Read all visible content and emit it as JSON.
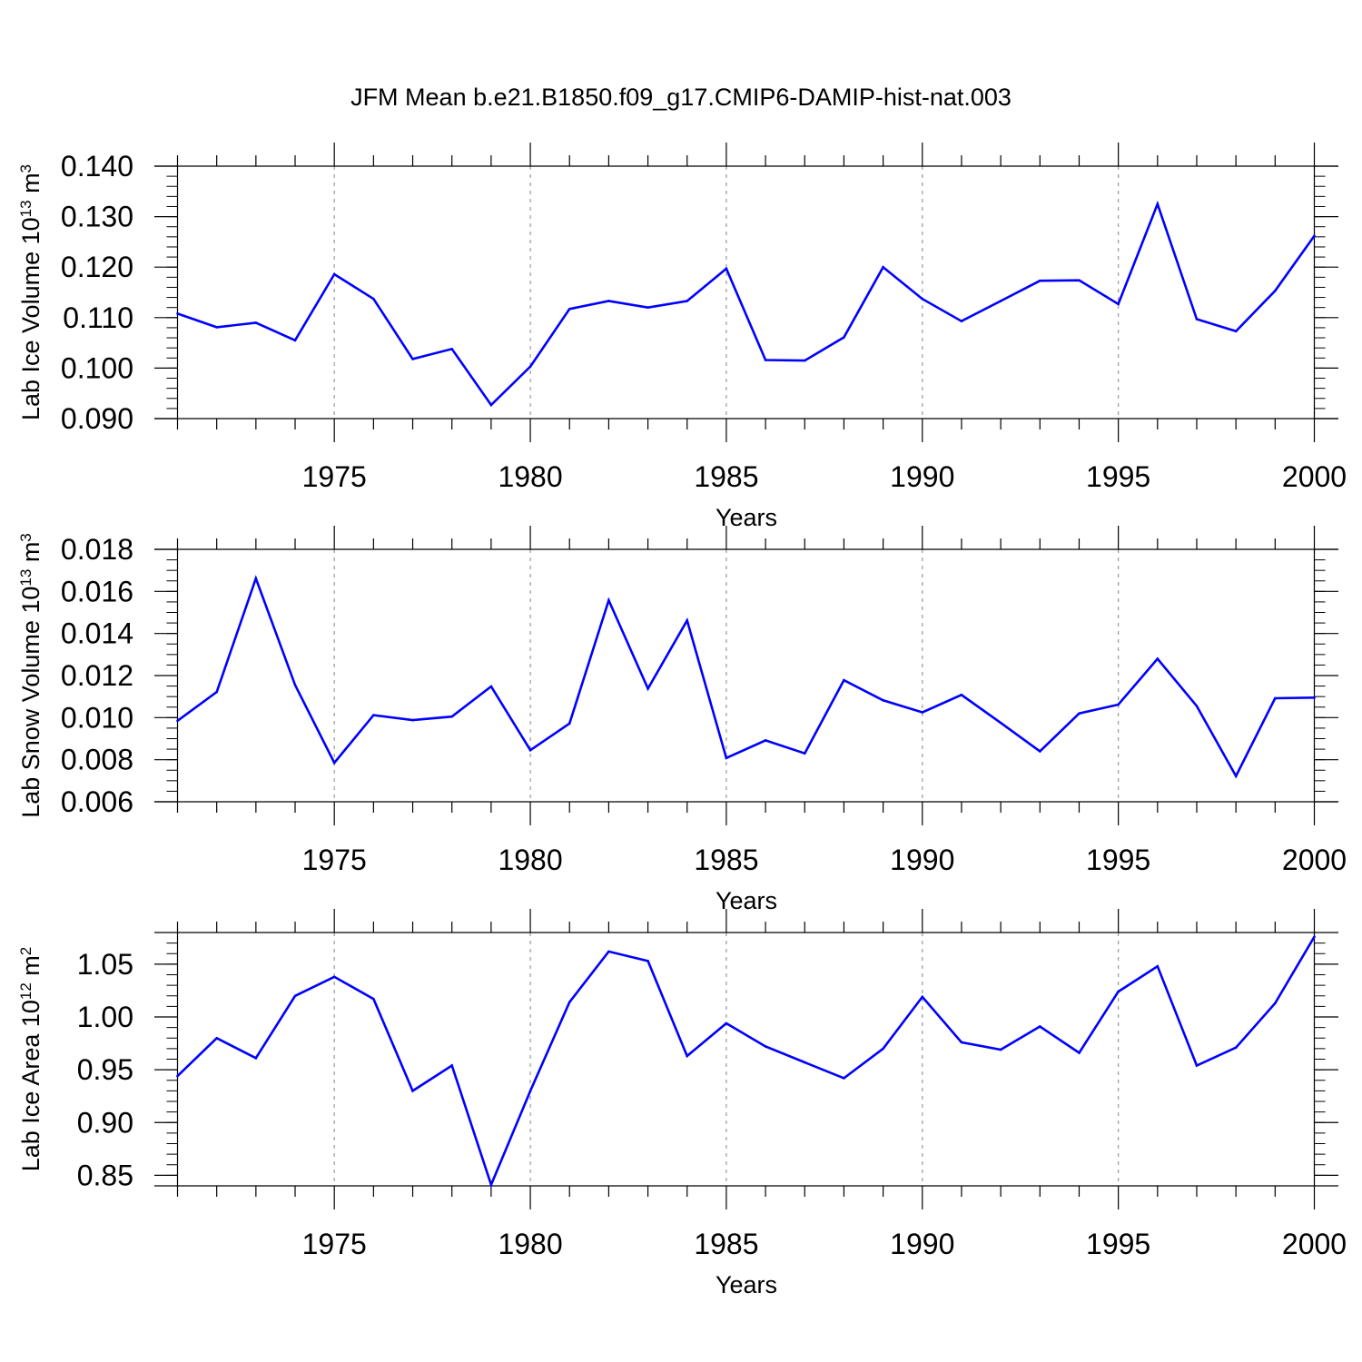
{
  "title": "JFM Mean b.e21.B1850.f09_g17.CMIP6-DAMIP-hist-nat.003",
  "chart_data": [
    {
      "type": "line",
      "title": "",
      "xlabel": "Years",
      "ylabel": "Lab Ice Volume 10",
      "ylabel_sup": "13",
      "ylabel_unit": " m",
      "ylabel_unit_sup": "3",
      "xlim": [
        1971,
        2000
      ],
      "ylim": [
        0.09,
        0.14
      ],
      "xticks": [
        1975,
        1980,
        1985,
        1990,
        1995,
        2000
      ],
      "yticks": [
        0.09,
        0.1,
        0.11,
        0.12,
        0.13,
        0.14
      ],
      "ytick_labels": [
        "0.090",
        "0.100",
        "0.110",
        "0.120",
        "0.130",
        "0.140"
      ],
      "y_minor_step": 0.002,
      "grid": "vertical dashed at major x ticks",
      "legend": "none",
      "color": "#0000ff",
      "x": [
        1971,
        1972,
        1973,
        1974,
        1975,
        1976,
        1977,
        1978,
        1979,
        1980,
        1981,
        1982,
        1983,
        1984,
        1985,
        1986,
        1987,
        1988,
        1989,
        1990,
        1991,
        1992,
        1993,
        1994,
        1995,
        1996,
        1997,
        1998,
        1999,
        2000
      ],
      "values": [
        0.1108,
        0.1081,
        0.109,
        0.1055,
        0.1186,
        0.1137,
        0.1018,
        0.1038,
        0.0927,
        0.1003,
        0.1117,
        0.1133,
        0.112,
        0.1133,
        0.1197,
        0.1016,
        0.1015,
        0.1061,
        0.12,
        0.1137,
        0.1093,
        0.1133,
        0.1173,
        0.1174,
        0.1127,
        0.1325,
        0.1097,
        0.1073,
        0.1153,
        0.1262
      ]
    },
    {
      "type": "line",
      "title": "",
      "xlabel": "Years",
      "ylabel": "Lab Snow Volume 10",
      "ylabel_sup": "13",
      "ylabel_unit": " m",
      "ylabel_unit_sup": "3",
      "xlim": [
        1971,
        2000
      ],
      "ylim": [
        0.006,
        0.018
      ],
      "xticks": [
        1975,
        1980,
        1985,
        1990,
        1995,
        2000
      ],
      "yticks": [
        0.006,
        0.008,
        0.01,
        0.012,
        0.014,
        0.016,
        0.018
      ],
      "ytick_labels": [
        "0.006",
        "0.008",
        "0.010",
        "0.012",
        "0.014",
        "0.016",
        "0.018"
      ],
      "y_minor_step": 0.0005,
      "grid": "vertical dashed at major x ticks",
      "legend": "none",
      "color": "#0000ff",
      "x": [
        1971,
        1972,
        1973,
        1974,
        1975,
        1976,
        1977,
        1978,
        1979,
        1980,
        1981,
        1982,
        1983,
        1984,
        1985,
        1986,
        1987,
        1988,
        1989,
        1990,
        1991,
        1992,
        1993,
        1994,
        1995,
        1996,
        1997,
        1998,
        1999,
        2000
      ],
      "values": [
        0.00985,
        0.01122,
        0.01662,
        0.01155,
        0.00785,
        0.01012,
        0.00988,
        0.01005,
        0.01148,
        0.00845,
        0.00972,
        0.01558,
        0.01138,
        0.01462,
        0.00808,
        0.00892,
        0.0083,
        0.01178,
        0.01082,
        0.01025,
        0.01108,
        0.00975,
        0.0084,
        0.0102,
        0.01062,
        0.0128,
        0.01055,
        0.00722,
        0.01092,
        0.01095
      ]
    },
    {
      "type": "line",
      "title": "",
      "xlabel": "Years",
      "ylabel": "Lab Ice Area 10",
      "ylabel_sup": "12",
      "ylabel_unit": " m",
      "ylabel_unit_sup": "2",
      "xlim": [
        1971,
        2000
      ],
      "ylim": [
        0.84,
        1.08
      ],
      "xticks": [
        1975,
        1980,
        1985,
        1990,
        1995,
        2000
      ],
      "yticks": [
        0.85,
        0.9,
        0.95,
        1.0,
        1.05
      ],
      "ytick_labels": [
        "0.85",
        "0.90",
        "0.95",
        "1.00",
        "1.05"
      ],
      "y_minor_step": 0.01,
      "grid": "vertical dashed at major x ticks",
      "legend": "none",
      "color": "#0000ff",
      "x": [
        1971,
        1972,
        1973,
        1974,
        1975,
        1976,
        1977,
        1978,
        1979,
        1980,
        1981,
        1982,
        1983,
        1984,
        1985,
        1986,
        1987,
        1988,
        1989,
        1990,
        1991,
        1992,
        1993,
        1994,
        1995,
        1996,
        1997,
        1998,
        1999,
        2000
      ],
      "values": [
        0.944,
        0.98,
        0.961,
        1.02,
        1.038,
        1.017,
        0.93,
        0.954,
        0.841,
        0.93,
        1.014,
        1.062,
        1.053,
        0.963,
        0.994,
        0.972,
        0.957,
        0.942,
        0.97,
        1.019,
        0.976,
        0.969,
        0.991,
        0.966,
        1.024,
        1.048,
        0.954,
        0.971,
        1.013,
        1.076
      ]
    }
  ]
}
